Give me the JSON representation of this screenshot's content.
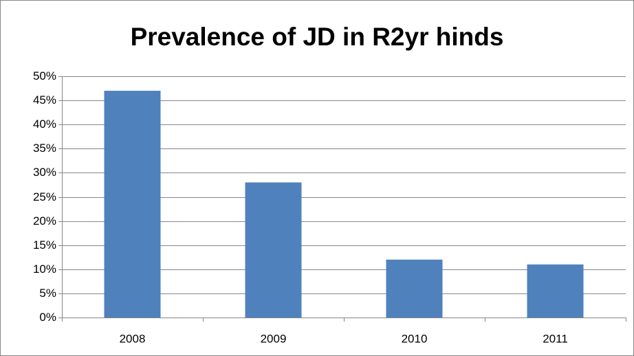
{
  "chart_data": {
    "type": "bar",
    "title": "Prevalence of JD in R2yr hinds",
    "categories": [
      "2008",
      "2009",
      "2010",
      "2011"
    ],
    "values": [
      47,
      28,
      12,
      11
    ],
    "color": "#4f81bd",
    "ylim": [
      0,
      50
    ],
    "yticks": [
      {
        "value": 0,
        "label": "0%"
      },
      {
        "value": 5,
        "label": "5%"
      },
      {
        "value": 10,
        "label": "10%"
      },
      {
        "value": 15,
        "label": "15%"
      },
      {
        "value": 20,
        "label": "20%"
      },
      {
        "value": 25,
        "label": "25%"
      },
      {
        "value": 30,
        "label": "30%"
      },
      {
        "value": 35,
        "label": "35%"
      },
      {
        "value": 40,
        "label": "40%"
      },
      {
        "value": 45,
        "label": "45%"
      },
      {
        "value": 50,
        "label": "50%"
      }
    ],
    "grid": true
  }
}
